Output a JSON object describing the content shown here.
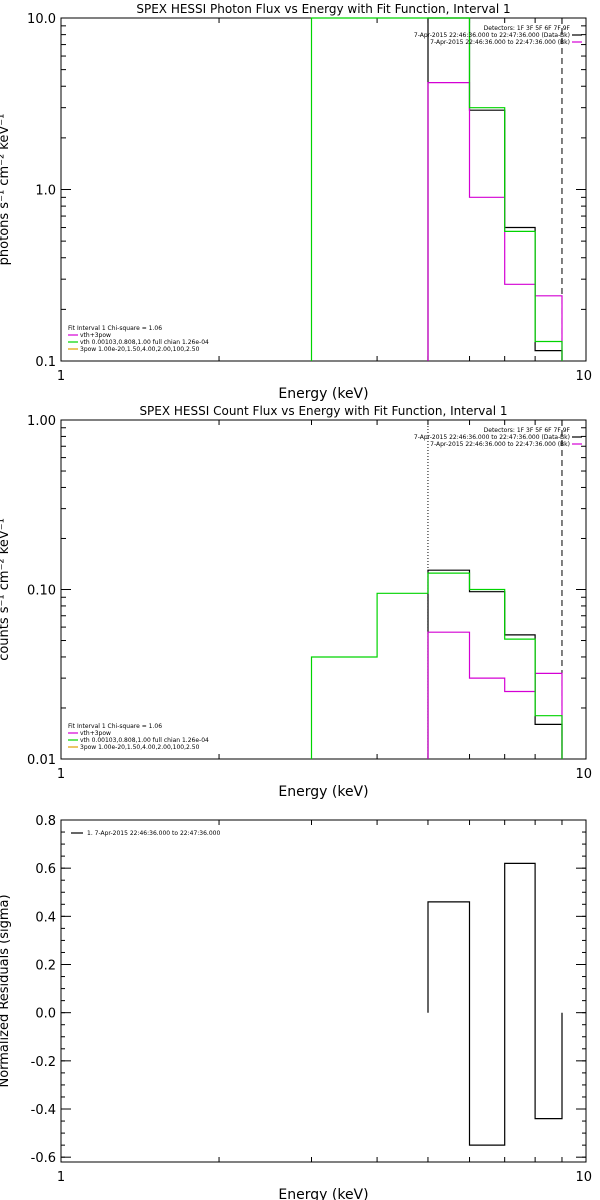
{
  "colors": {
    "black": "#000000",
    "magenta": "#d400d4",
    "green": "#00d400",
    "orange": "#e0a000"
  },
  "chart_data": [
    {
      "type": "line",
      "step": true,
      "title": "SPEX HESSI Photon Flux vs Energy with Fit Function, Interval 1",
      "xlabel": "Energy (keV)",
      "ylabel": "photons s⁻¹ cm⁻² keV⁻¹",
      "xscale": "log",
      "yscale": "log",
      "xlim": [
        1,
        10
      ],
      "ylim": [
        0.1,
        10
      ],
      "xticks": [
        1,
        10
      ],
      "xtick_labels": [
        "1",
        "10"
      ],
      "yticks": [
        0.1,
        1,
        10
      ],
      "ytick_labels": [
        "0.1",
        "1.0",
        "10.0"
      ],
      "dashed_x": 9.0,
      "dotted_x": null,
      "legend_top": {
        "position": "top-right",
        "lines": [
          {
            "text": "Detectors: 1F 3F 5F 6F 7F 9F",
            "color": null
          },
          {
            "text": "7-Apr-2015 22:46:36.000 to 22:47:36.000 (Data-Bk)",
            "color": "#000000"
          },
          {
            "text": "7-Apr-2015 22:46:36.000 to 22:47:36.000 (Bk)",
            "color": "#d400d4"
          }
        ]
      },
      "legend_bottom": {
        "position": "bottom-left",
        "lines": [
          {
            "text": "Fit Interval 1    Chi-square = 1.06",
            "color": null
          },
          {
            "text": "vth+3pow",
            "color": "#d400d4"
          },
          {
            "text": "vth 0.00103,0.808,1.00  full chian 1.26e-04",
            "color": "#00d400"
          },
          {
            "text": "3pow 1.00e-20,1.50,4.00,2.00,100,2.50",
            "color": "#e0a000"
          }
        ]
      },
      "series": [
        {
          "color": "#000000",
          "edges": [
            5.0,
            6.0,
            7.0,
            8.0,
            9.0
          ],
          "values": [
            10.2,
            2.9,
            0.6,
            0.115
          ]
        },
        {
          "color": "#d400d4",
          "edges": [
            5.0,
            6.0,
            7.0,
            8.0,
            9.0
          ],
          "values": [
            4.2,
            0.9,
            0.28,
            0.24
          ]
        },
        {
          "color": "#00d400",
          "edges": [
            3.0,
            5.0,
            6.0,
            7.0,
            8.0,
            9.0
          ],
          "values": [
            11.0,
            10.0,
            3.0,
            0.57,
            0.13
          ]
        }
      ]
    },
    {
      "type": "line",
      "step": true,
      "title": "SPEX HESSI Count Flux vs Energy with Fit Function, Interval 1",
      "xlabel": "Energy (keV)",
      "ylabel": "counts s⁻¹ cm⁻² keV⁻¹",
      "xscale": "log",
      "yscale": "log",
      "xlim": [
        1,
        10
      ],
      "ylim": [
        0.01,
        1
      ],
      "xticks": [
        1,
        10
      ],
      "xtick_labels": [
        "1",
        "10"
      ],
      "yticks": [
        0.01,
        0.1,
        1
      ],
      "ytick_labels": [
        "0.01",
        "0.10",
        "1.00"
      ],
      "dashed_x": 9.0,
      "dotted_x": 5.0,
      "legend_top": {
        "position": "top-right",
        "lines": [
          {
            "text": "Detectors: 1F 3F 5F 6F 7F 9F",
            "color": null
          },
          {
            "text": "7-Apr-2015 22:46:36.000 to 22:47:36.000 (Data-Bk)",
            "color": "#000000"
          },
          {
            "text": "7-Apr-2015 22:46:36.000 to 22:47:36.000 (Bk)",
            "color": "#d400d4"
          }
        ]
      },
      "legend_bottom": {
        "position": "bottom-left",
        "lines": [
          {
            "text": "Fit Interval 1    Chi-square = 1.06",
            "color": null
          },
          {
            "text": "vth+3pow",
            "color": "#d400d4"
          },
          {
            "text": "vth 0.00103,0.808,1.00  full chian 1.26e-04",
            "color": "#00d400"
          },
          {
            "text": "3pow 1.00e-20,1.50,4.00,2.00,100,2.50",
            "color": "#e0a000"
          }
        ]
      },
      "series": [
        {
          "color": "#000000",
          "edges": [
            5.0,
            6.0,
            7.0,
            8.0,
            9.0
          ],
          "values": [
            0.13,
            0.097,
            0.054,
            0.016
          ]
        },
        {
          "color": "#d400d4",
          "edges": [
            5.0,
            6.0,
            7.0,
            8.0,
            9.0
          ],
          "values": [
            0.056,
            0.03,
            0.025,
            0.032
          ]
        },
        {
          "color": "#00d400",
          "edges": [
            3.0,
            4.0,
            5.0,
            6.0,
            7.0,
            8.0,
            9.0
          ],
          "values": [
            0.04,
            0.095,
            0.125,
            0.1,
            0.051,
            0.018
          ]
        }
      ]
    },
    {
      "type": "line",
      "step": true,
      "title": "",
      "xlabel": "Energy (keV)",
      "ylabel": "Normalized Residuals (sigma)",
      "xscale": "log",
      "yscale": "linear",
      "xlim": [
        1,
        10
      ],
      "ylim": [
        -0.62,
        0.8
      ],
      "xticks": [
        1,
        10
      ],
      "xtick_labels": [
        "1",
        "10"
      ],
      "yticks": [
        -0.6,
        -0.4,
        -0.2,
        0.0,
        0.2,
        0.4,
        0.6,
        0.8
      ],
      "ytick_labels": [
        "-0.6",
        "-0.4",
        "-0.2",
        "0.0",
        "0.2",
        "0.4",
        "0.6",
        "0.8"
      ],
      "dashed_x": null,
      "dotted_x": null,
      "legend_top": {
        "position": "top-left",
        "lines": [
          {
            "text": "1.  7-Apr-2015 22:46:36.000 to 22:47:36.000",
            "color": "#000000"
          }
        ]
      },
      "legend_bottom": null,
      "series": [
        {
          "color": "#000000",
          "edges": [
            5.0,
            6.0,
            7.0,
            8.0,
            9.0
          ],
          "values": [
            0.46,
            -0.55,
            0.62,
            -0.44
          ]
        }
      ]
    }
  ]
}
